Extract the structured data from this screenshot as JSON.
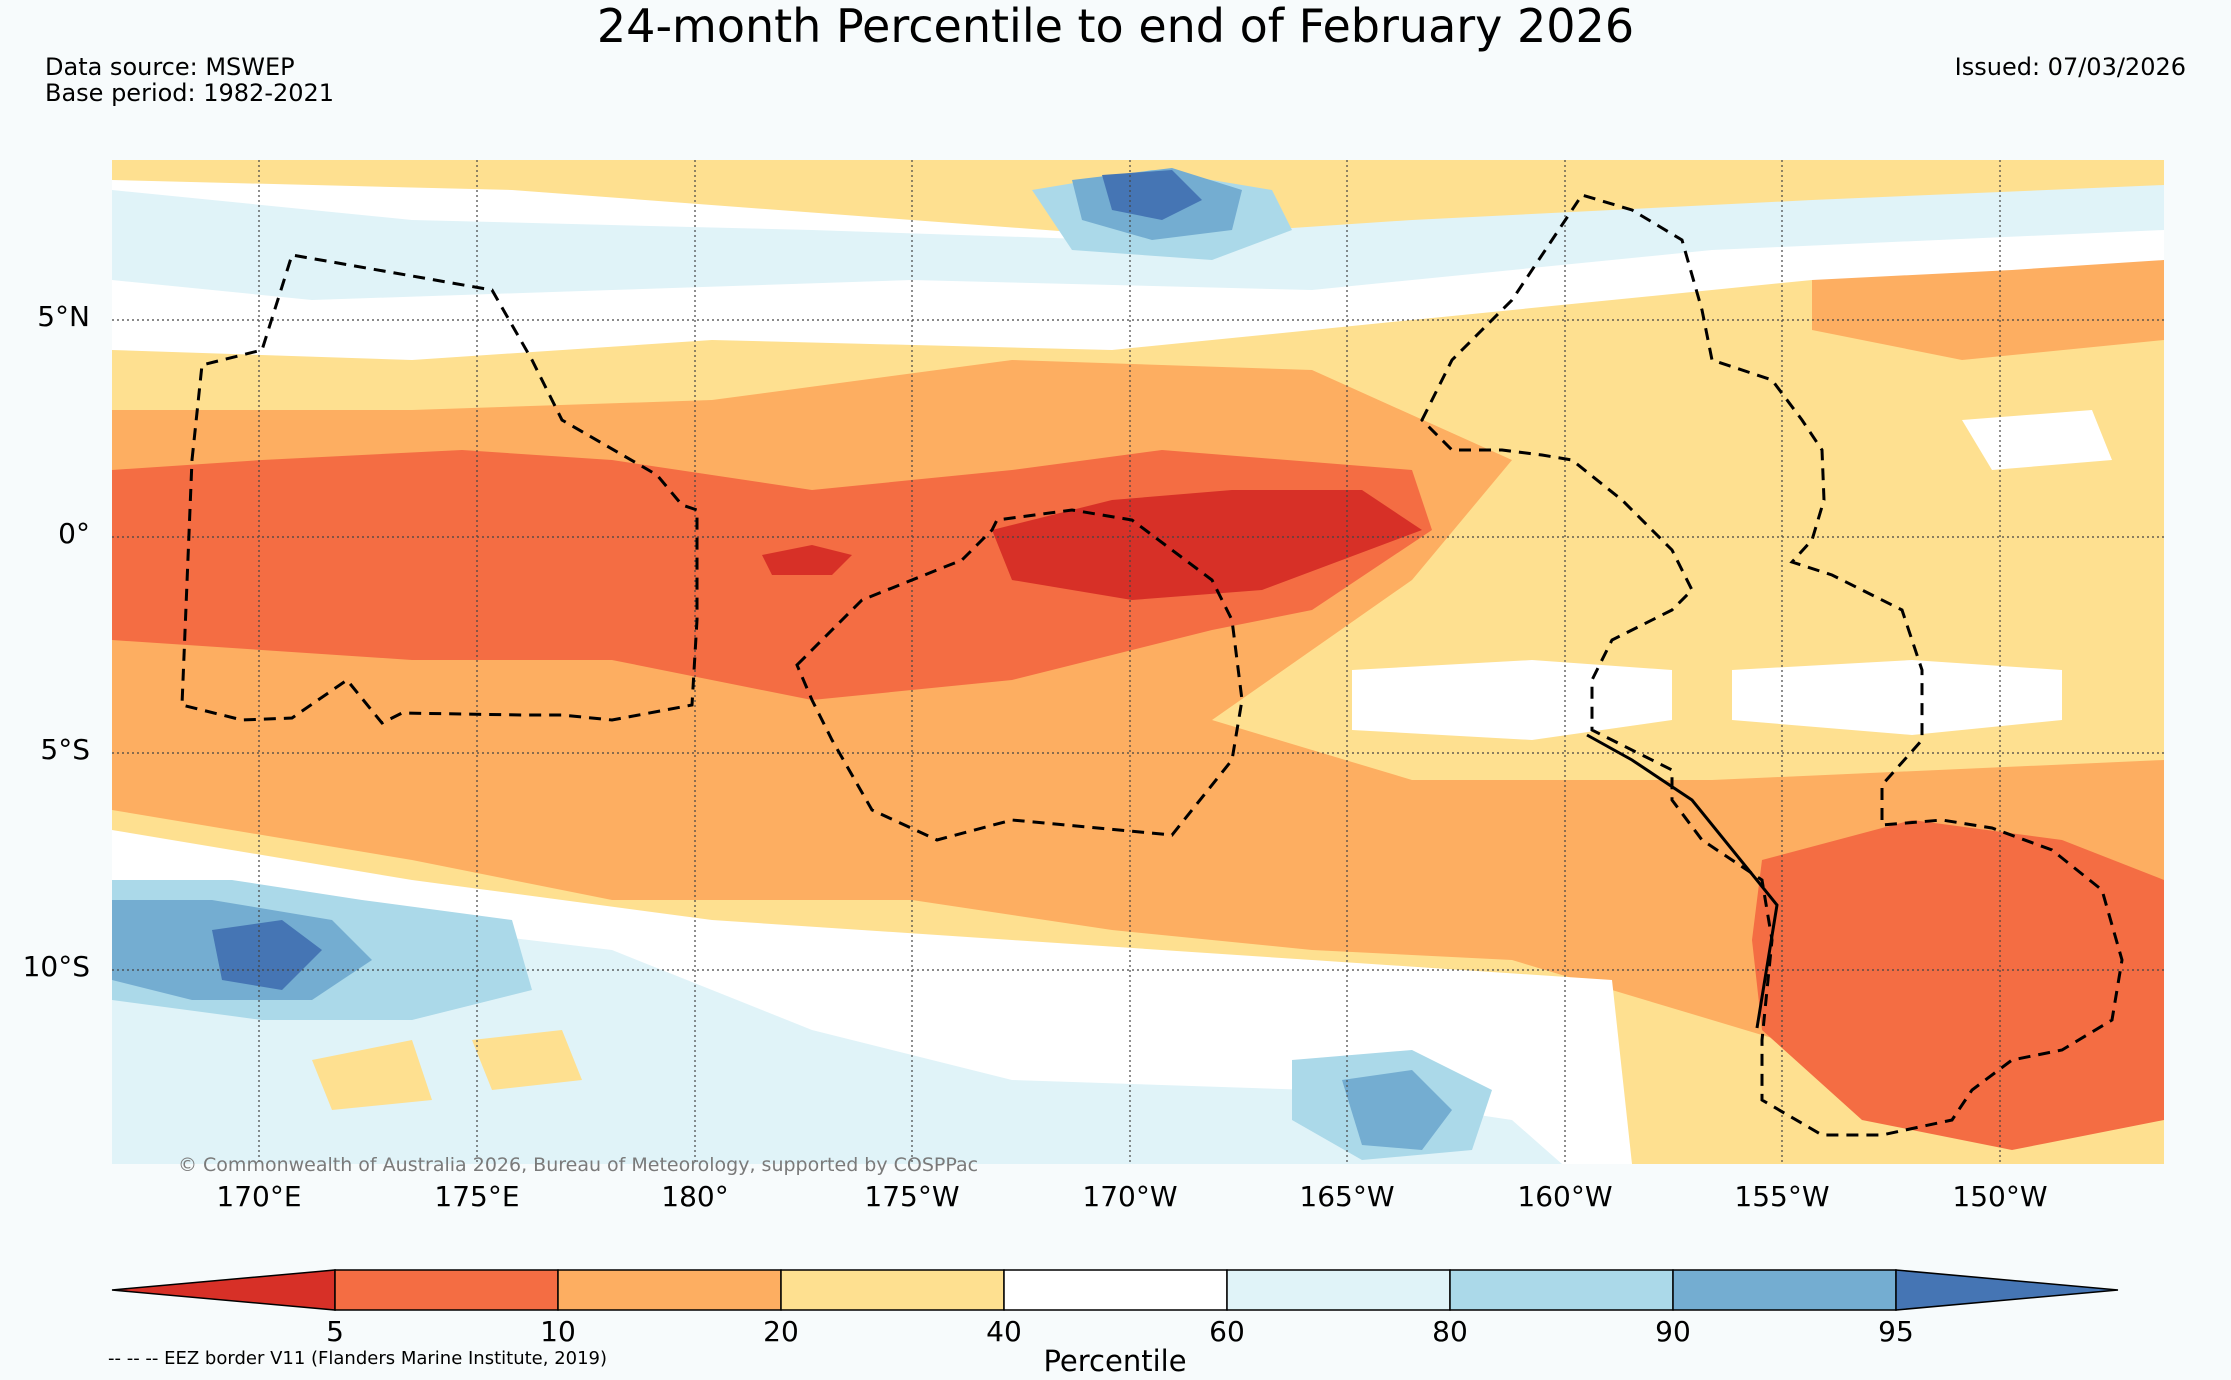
{
  "title": "24-month Percentile to end of February 2026",
  "data_source": "Data source: MSWEP",
  "base_period": "Base period: 1982-2021",
  "issued": "Issued: 07/03/2026",
  "copyright": "© Commonwealth of Australia 2026, Bureau of Meteorology, supported by COSPPac",
  "latitude_labels": [
    "5°N",
    "0°",
    "5°S",
    "10°S"
  ],
  "longitude_labels": [
    "170°E",
    "175°E",
    "180°",
    "175°W",
    "170°W",
    "165°W",
    "160°W",
    "155°W",
    "150°W"
  ],
  "colorbar": {
    "label": "Percentile",
    "ticks": [
      "5",
      "10",
      "20",
      "40",
      "60",
      "80",
      "90",
      "95"
    ],
    "colors": {
      "below_5": "#d73027",
      "5_10": "#f46d43",
      "10_20": "#fdae61",
      "20_40": "#fee090",
      "40_60": "#ffffff",
      "60_80": "#e0f3f8",
      "80_90": "#abd9e9",
      "90_95": "#74add1",
      "above_95": "#4575b4"
    }
  },
  "legend_note": "-- -- -- EEZ border V11 (Flanders Marine Institute, 2019)"
}
